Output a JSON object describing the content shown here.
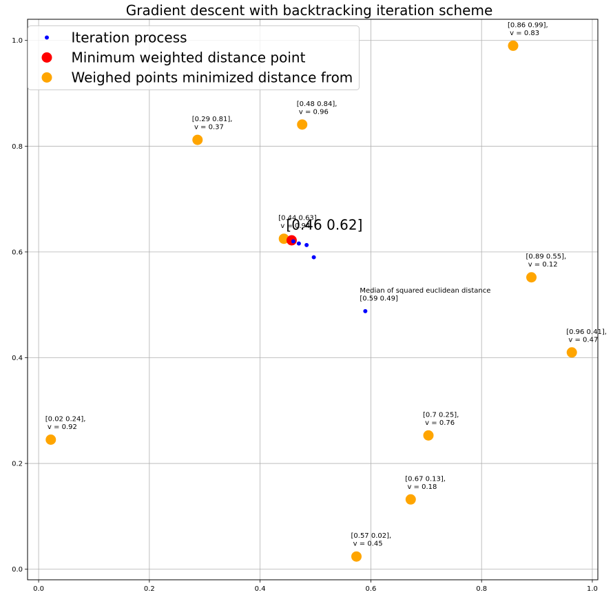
{
  "chart_data": {
    "type": "scatter",
    "title": "Gradient descent with backtracking iteration scheme",
    "xlabel": "",
    "ylabel": "",
    "xlim": [
      -0.02,
      1.01
    ],
    "ylim": [
      -0.02,
      1.04
    ],
    "xticks": [
      "0.0",
      "0.2",
      "0.4",
      "0.6",
      "0.8",
      "1.0"
    ],
    "yticks": [
      "0.0",
      "0.2",
      "0.4",
      "0.6",
      "0.8",
      "1.0"
    ],
    "xtick_values": [
      0.0,
      0.2,
      0.4,
      0.6,
      0.8,
      1.0
    ],
    "ytick_values": [
      0.0,
      0.2,
      0.4,
      0.6,
      0.8,
      1.0
    ],
    "grid": true,
    "legend_placement": "top-left",
    "series": [
      {
        "name": "Iteration process",
        "color": "#0000ff",
        "marker": "small-dot",
        "points": [
          {
            "x": 0.59,
            "y": 0.488
          },
          {
            "x": 0.497,
            "y": 0.59
          },
          {
            "x": 0.484,
            "y": 0.613
          },
          {
            "x": 0.47,
            "y": 0.616
          },
          {
            "x": 0.46,
            "y": 0.62
          }
        ]
      },
      {
        "name": "Minimum weighted distance point",
        "color": "#ff0000",
        "marker": "large-dot",
        "points": [
          {
            "x": 0.457,
            "y": 0.622
          }
        ]
      },
      {
        "name": "Weighed points minimized distance from",
        "color": "#ffa500",
        "marker": "large-dot",
        "points": [
          {
            "x": 0.857,
            "y": 0.99,
            "label": "[0.86 0.99],\n v = 0.83"
          },
          {
            "x": 0.476,
            "y": 0.841,
            "label": "[0.48 0.84],\n v = 0.96"
          },
          {
            "x": 0.287,
            "y": 0.812,
            "label": "[0.29 0.81],\n v = 0.37"
          },
          {
            "x": 0.443,
            "y": 0.625,
            "label": "[0.44 0.63],\n v = 0.94"
          },
          {
            "x": 0.89,
            "y": 0.552,
            "label": "[0.89 0.55],\n v = 0.12"
          },
          {
            "x": 0.963,
            "y": 0.41,
            "label": "[0.96 0.41],\n v = 0.47"
          },
          {
            "x": 0.022,
            "y": 0.245,
            "label": "[0.02 0.24],\n v = 0.92"
          },
          {
            "x": 0.704,
            "y": 0.253,
            "label": "[0.7  0.25],\n v = 0.76"
          },
          {
            "x": 0.672,
            "y": 0.132,
            "label": "[0.67 0.13],\n v = 0.18"
          },
          {
            "x": 0.574,
            "y": 0.024,
            "label": "[0.57 0.02],\n v = 0.45"
          }
        ]
      }
    ],
    "annotations": [
      {
        "text": "Median of squared euclidean distance\n[0.59 0.49]",
        "x": 0.58,
        "y": 0.488,
        "size": "small"
      },
      {
        "text": "[0.46 0.62]",
        "x": 0.447,
        "y": 0.632,
        "size": "large"
      }
    ]
  }
}
